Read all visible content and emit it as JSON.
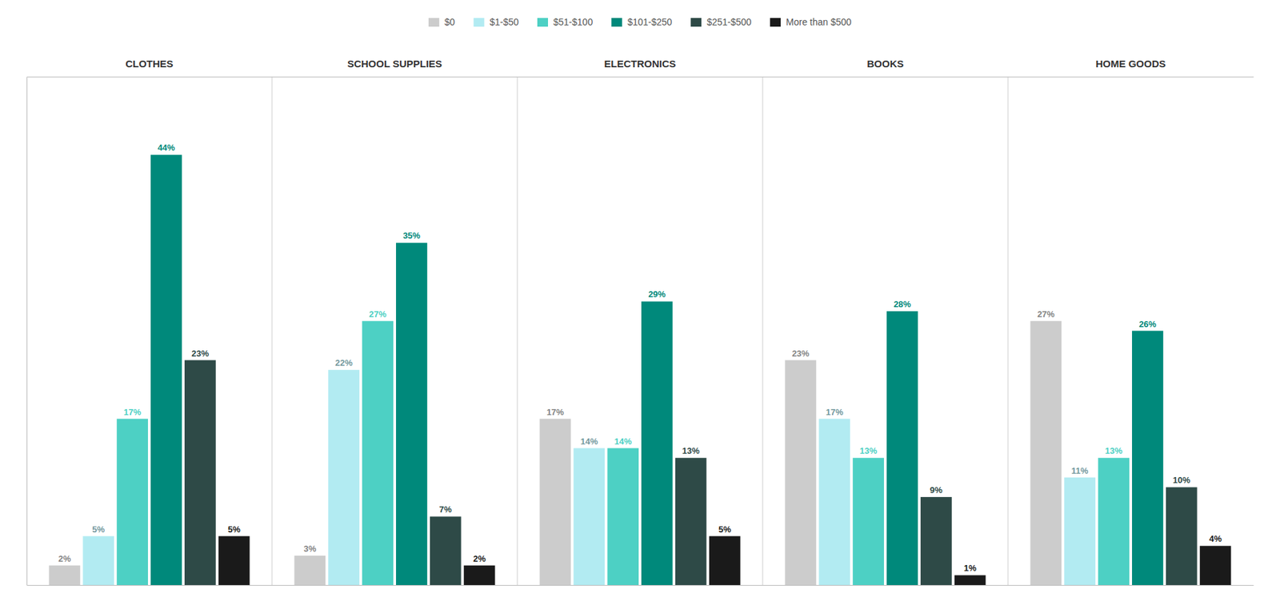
{
  "chart_data": {
    "type": "bar",
    "categories": [
      "CLOTHES",
      "SCHOOL SUPPLIES",
      "ELECTRONICS",
      "BOOKS",
      "HOME GOODS"
    ],
    "series": [
      {
        "name": "$0",
        "color": "#cccccc",
        "values": [
          2,
          3,
          17,
          23,
          27
        ],
        "value_labels": [
          "2%",
          "3%",
          "17%",
          "23%",
          "27%"
        ]
      },
      {
        "name": "$1-$50",
        "color": "#b2ebf2",
        "values": [
          5,
          22,
          14,
          17,
          11
        ],
        "value_labels": [
          "5%",
          "22%",
          "14%",
          "17%",
          "11%"
        ]
      },
      {
        "name": "$51-$100",
        "color": "#4dd0c4",
        "values": [
          17,
          27,
          14,
          13,
          13
        ],
        "value_labels": [
          "17%",
          "27%",
          "14%",
          "13%",
          "13%"
        ]
      },
      {
        "name": "$101-$250",
        "color": "#00897b",
        "values": [
          44,
          35,
          29,
          28,
          26
        ],
        "value_labels": [
          "44%",
          "35%",
          "29%",
          "28%",
          "26%"
        ]
      },
      {
        "name": "$251-$500",
        "color": "#2e4a47",
        "values": [
          23,
          7,
          13,
          9,
          10
        ],
        "value_labels": [
          "23%",
          "7%",
          "13%",
          "9%",
          "10%"
        ]
      },
      {
        "name": "More than $500",
        "color": "#1a1a1a",
        "values": [
          5,
          2,
          5,
          1,
          4
        ],
        "value_labels": [
          "5%",
          "2%",
          "5%",
          "1%",
          "4%"
        ]
      }
    ],
    "ylim": [
      0,
      52
    ],
    "tick_labels": false,
    "data_labels": true,
    "grid": false,
    "legend": "top"
  }
}
